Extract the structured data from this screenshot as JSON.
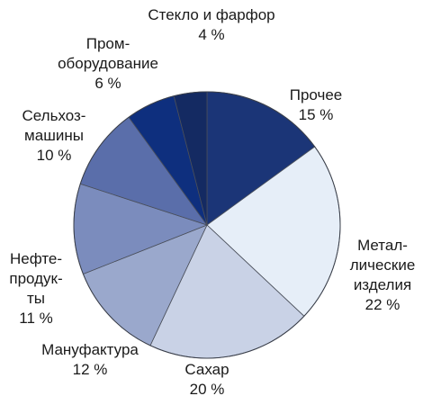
{
  "chart_data": {
    "type": "pie",
    "title": "",
    "start_angle_deg": -90,
    "direction": "clockwise",
    "slices": [
      {
        "lines": [
          "Прочее"
        ],
        "pct_label": "15 %",
        "value": 15,
        "color": "#1b3577"
      },
      {
        "lines": [
          "Метал-",
          "лические",
          "изделия"
        ],
        "pct_label": "22 %",
        "value": 22,
        "color": "#e6eef8"
      },
      {
        "lines": [
          "Сахар"
        ],
        "pct_label": "20 %",
        "value": 20,
        "color": "#c9d2e6"
      },
      {
        "lines": [
          "Мануфактура"
        ],
        "pct_label": "12 %",
        "value": 12,
        "color": "#9aa8cc"
      },
      {
        "lines": [
          "Нефте-",
          "продук-",
          "ты"
        ],
        "pct_label": "11 %",
        "value": 11,
        "color": "#7b8cbd"
      },
      {
        "lines": [
          "Сельхоз-",
          "машины"
        ],
        "pct_label": "10 %",
        "value": 10,
        "color": "#5a6eaa"
      },
      {
        "lines": [
          "Пром-",
          "оборудование"
        ],
        "pct_label": "6 %",
        "value": 6,
        "color": "#0e2f7e"
      },
      {
        "lines": [
          "Стекло и фарфор"
        ],
        "pct_label": "4 %",
        "value": 4,
        "color": "#142a62"
      }
    ]
  }
}
